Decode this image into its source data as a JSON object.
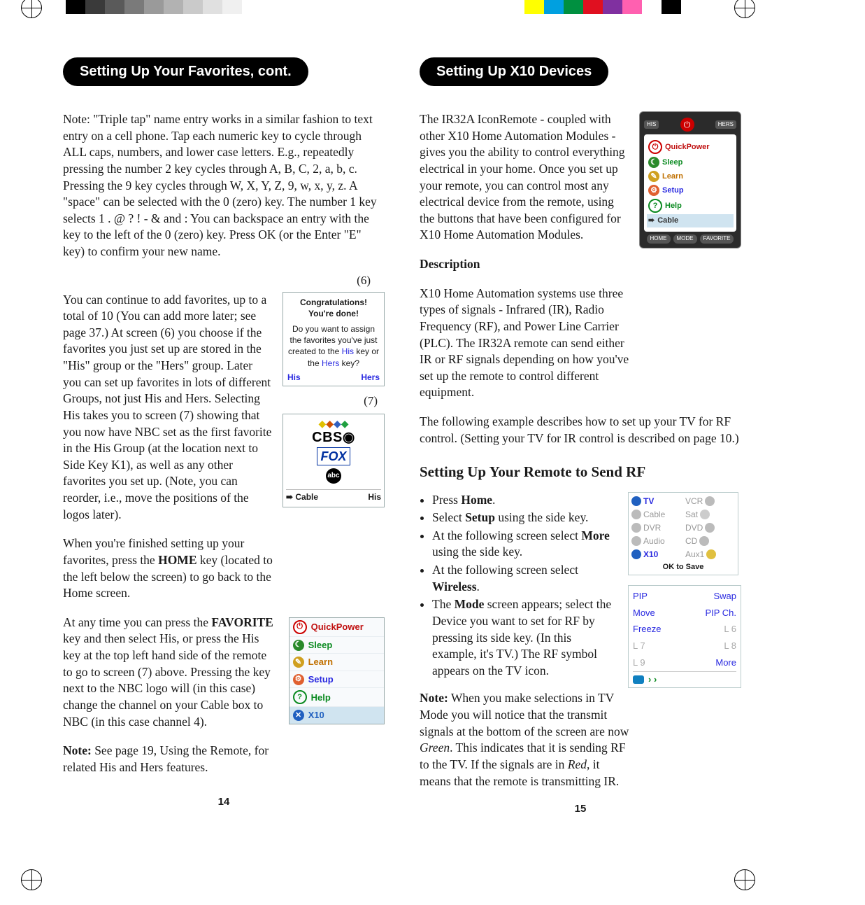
{
  "top_colors_left": [
    "#000000",
    "#3a3a3a",
    "#5a5a5a",
    "#7a7a7a",
    "#9a9a9a",
    "#b2b2b2",
    "#cacaca",
    "#e0e0e0",
    "#f0f0f0",
    "#ffffff"
  ],
  "top_colors_right": [
    "#ffff00",
    "#00a0e0",
    "#009040",
    "#e01020",
    "#8030a0",
    "#ff60b0",
    "#ffffff",
    "#000000"
  ],
  "left": {
    "heading": "Setting Up Your Favorites, cont.",
    "p1": "Note: \"Triple tap\" name entry works in a similar fashion to text entry on a cell phone. Tap each numeric key to cycle through ALL caps, numbers, and lower case letters. E.g., repeatedly pressing the number 2 key cycles through A, B, C, 2, a, b, c. Pressing the 9 key cycles through W, X, Y, Z, 9, w, x, y, z. A \"space\" can be selected with the 0 (zero) key. The number 1 key selects 1 . @ ? ! - & and :  You can backspace an entry with the key to the left of the 0 (zero) key. Press OK (or the Enter \"E\" key) to confirm your new name.",
    "figref6": "(6)",
    "p2": "You can continue to add favorites, up to a total of 10 (You can add more later; see page 37.) At screen (6) you choose if the favorites you just set up are stored in the \"His\" group or the \"Hers\" group. Later you can set up favorites in lots of different Groups, not just His and Hers. Selecting His takes you to screen (7) showing that you now have NBC set as the first favorite in the His Group (at the location next to Side Key K1), as well as any other favorites you set up. (Note, you can reorder, i.e., move the positions of the logos later).",
    "figref7": "(7)",
    "p3a": "When you're finished setting up your favorites, press the ",
    "p3_bold": "HOME",
    "p3b": " key (located to the left below the screen) to go back to the Home screen.",
    "p4a": "At any time you can press the ",
    "p4_bold": "FAVORITE",
    "p4b": " key and then select His, or press the His key at the top left hand side of the remote to go to screen (7) above. Pressing the key next to the NBC logo will (in this case) change the channel on your Cable box to NBC (in this case channel 4).",
    "p5a": "Note:",
    "p5b": " See page 19, Using the Remote, for related His and Hers features.",
    "fig6": {
      "l1": "Congratulations!",
      "l2": "You're done!",
      "l3": "Do you want to assign the favorites you've just created to the ",
      "l3_his": "His",
      "l3_mid": " key or the ",
      "l3_hers": "Hers",
      "l3_end": " key?",
      "his": "His",
      "hers": "Hers"
    },
    "fig7": {
      "cable": "Cable",
      "his": "His"
    },
    "menu": {
      "quickpower": "QuickPower",
      "sleep": "Sleep",
      "learn": "Learn",
      "setup": "Setup",
      "help": "Help",
      "x10": "X10"
    },
    "pagenum": "14"
  },
  "right": {
    "heading": "Setting Up X10 Devices",
    "p1": "The IR32A IconRemote - coupled with other X10 Home Automation Modules - gives you the ability to control everything electrical in your home. Once you set up your remote, you can control most any electrical device from the remote, using the buttons that have been configured for X10 Home Automation Modules.",
    "desc_h": "Description",
    "p2": "X10 Home Automation systems use three types of signals - Infrared (IR), Radio Frequency (RF), and Power Line Carrier (PLC). The IR32A remote can send either IR or RF signals depending on how you've set up the remote to control different equipment.",
    "p3": "The following example describes how to set up your TV for RF control. (Setting your TV for IR control is described on page 10.)",
    "h3": "Setting Up Your Remote to Send RF",
    "b1a": "Press ",
    "b1b": "Home",
    "b1c": ".",
    "b2a": "Select ",
    "b2b": "Setup",
    "b2c": " using the side key.",
    "b3a": "At the following screen select ",
    "b3b": "More",
    "b3c": " using the side key.",
    "b4a": "At the following screen select ",
    "b4b": "Wireless",
    "b4c": ".",
    "b5a": "The ",
    "b5b": "Mode",
    "b5c": " screen appears; select the Device you want to set for RF by pressing its side key. (In this example, it's TV.) The RF symbol appears on the TV icon.",
    "note_a": "Note:",
    "note_b": " When you make selections in TV Mode you will notice that the transmit signals at the bottom of the screen are now ",
    "note_green": "Green",
    "note_c": ". This indicates that it is sending RF to the TV. If the signals are in ",
    "note_red": "Red",
    "note_d": ", it means that the remote is transmitting IR.",
    "remote": {
      "his": "HIS",
      "hers": "HERS",
      "items": [
        "QuickPower",
        "Sleep",
        "Learn",
        "Setup",
        "Help",
        "Cable"
      ],
      "bot": [
        "HOME",
        "MODE",
        "FAVORITE"
      ]
    },
    "dev": {
      "tv": "TV",
      "vcr": "VCR",
      "cable": "Cable",
      "sat": "Sat",
      "dvr": "DVR",
      "dvd": "DVD",
      "audio": "Audio",
      "cd": "CD",
      "x10": "X10",
      "aux": "Aux1",
      "ok": "OK to Save"
    },
    "pip": {
      "pip": "PIP",
      "swap": "Swap",
      "move": "Move",
      "pipch": "PIP Ch.",
      "freeze": "Freeze",
      "l6": "L 6",
      "l7": "L 7",
      "l8": "L 8",
      "l9": "L 9",
      "more": "More"
    },
    "pagenum": "15"
  },
  "colors": {
    "blue": "#2a2ae0",
    "red": "#c01010",
    "green": "#0a8a20",
    "orange": "#d07000",
    "gray_text": "#999999"
  }
}
